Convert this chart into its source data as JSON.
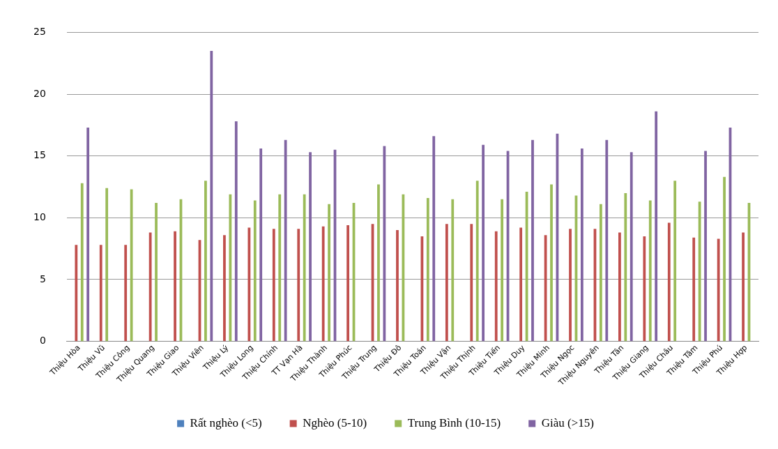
{
  "chart_data": {
    "type": "bar",
    "categories": [
      "Thiệu Hòa",
      "Thiệu Vũ",
      "Thiệu Công",
      "Thiệu Quang",
      "Thiệu Giao",
      "Thiệu Viên",
      "Thiệu Lý",
      "Thiệu Long",
      "Thiệu Chính",
      "TT Vạn Hà",
      "Thiệu Thành",
      "Thiệu Phúc",
      "Thiệu Trung",
      "Thiệu Đô",
      "Thiệu Toán",
      "Thiệu Vận",
      "Thiệu Thịnh",
      "Thiệu Tiến",
      "Thiệu Duy",
      "Thiệu Minh",
      "Thiệu Ngọc",
      "Thiệu Nguyên",
      "Thiệu Tân",
      "Thiệu Giang",
      "Thiệu Châu",
      "Thiệu Tâm",
      "Thiệu Phú",
      "Thiệu Hợp"
    ],
    "series": [
      {
        "name": "Rất nghèo (<5)",
        "color": "#4f81bd",
        "values": [
          null,
          null,
          null,
          null,
          null,
          null,
          null,
          null,
          null,
          null,
          null,
          null,
          null,
          null,
          null,
          null,
          null,
          null,
          null,
          null,
          null,
          null,
          null,
          null,
          null,
          null,
          null,
          null
        ]
      },
      {
        "name": "Nghèo (5-10)",
        "color": "#c0504d",
        "values": [
          7.8,
          7.8,
          7.8,
          8.8,
          8.9,
          8.2,
          8.6,
          9.2,
          9.1,
          9.1,
          9.3,
          9.4,
          9.5,
          9.0,
          8.5,
          9.5,
          9.5,
          8.9,
          9.2,
          8.6,
          9.1,
          9.1,
          8.8,
          8.5,
          9.6,
          8.4,
          8.3,
          8.8
        ]
      },
      {
        "name": "Trung Bình (10-15)",
        "color": "#9bbb59",
        "values": [
          12.8,
          12.4,
          12.3,
          11.2,
          11.5,
          13.0,
          11.9,
          11.4,
          11.9,
          11.9,
          11.1,
          11.2,
          12.7,
          11.9,
          11.6,
          11.5,
          13.0,
          11.5,
          12.1,
          12.7,
          11.8,
          11.1,
          12.0,
          11.4,
          13.0,
          11.3,
          13.3,
          11.2
        ]
      },
      {
        "name": "Giàu (>15)",
        "color": "#8064a2",
        "values": [
          17.3,
          null,
          null,
          null,
          null,
          23.5,
          17.8,
          15.6,
          16.3,
          15.3,
          15.5,
          null,
          15.8,
          null,
          16.6,
          null,
          15.9,
          15.4,
          16.3,
          16.8,
          15.6,
          16.3,
          15.3,
          18.6,
          null,
          15.4,
          17.3,
          null
        ]
      }
    ],
    "ylim": [
      0,
      25
    ],
    "yticks": [
      0,
      5,
      10,
      15,
      20,
      25
    ],
    "grid": "y",
    "legend": "bottom"
  }
}
